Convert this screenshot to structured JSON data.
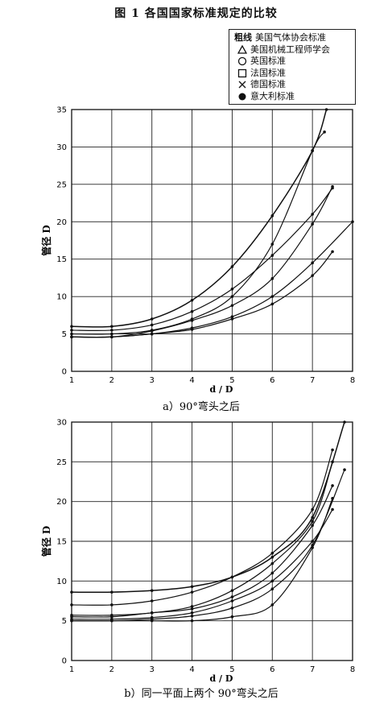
{
  "figure_title": "图 1   各国国家标准规定的比较",
  "legend": {
    "items": [
      {
        "symbol": "粗线",
        "label": "美国气体协会标准",
        "icon": "thick-line-icon"
      },
      {
        "symbol": "triangle",
        "label": "美国机械工程师学会",
        "icon": "triangle-icon"
      },
      {
        "symbol": "circle",
        "label": "英国标准",
        "icon": "circle-icon"
      },
      {
        "symbol": "square",
        "label": "法国标准",
        "icon": "square-icon"
      },
      {
        "symbol": "cross",
        "label": "德国标准",
        "icon": "cross-icon"
      },
      {
        "symbol": "dot",
        "label": "意大利标准",
        "icon": "filled-dot-icon"
      }
    ]
  },
  "chart_data": [
    {
      "type": "line",
      "title": "a）90°弯头之后",
      "xlabel": "d / D",
      "ylabel": "管径 D",
      "xlim": [
        1,
        8
      ],
      "ylim": [
        0,
        35
      ],
      "xticks": [
        1,
        2,
        3,
        4,
        5,
        6,
        7,
        8
      ],
      "yticks": [
        0,
        5,
        10,
        15,
        20,
        25,
        30,
        35
      ],
      "grid": true,
      "series": [
        {
          "x": [
            1,
            2,
            3,
            4,
            5,
            6,
            7,
            7.35
          ],
          "y": [
            6.0,
            6.0,
            7.0,
            9.5,
            14.0,
            20.8,
            29.5,
            35.0
          ]
        },
        {
          "x": [
            1,
            2,
            3,
            4,
            5,
            6,
            7,
            7.5
          ],
          "y": [
            5.5,
            5.5,
            6.2,
            8.0,
            11.0,
            15.5,
            21.0,
            24.5
          ]
        },
        {
          "x": [
            1,
            2,
            3,
            4,
            5,
            6,
            7,
            7.3
          ],
          "y": [
            5.0,
            5.0,
            5.5,
            7.0,
            10.0,
            17.0,
            29.5,
            32.0
          ]
        },
        {
          "x": [
            1,
            2,
            3,
            4,
            5,
            6,
            7,
            7.5
          ],
          "y": [
            4.6,
            4.6,
            5.4,
            6.8,
            8.8,
            12.4,
            19.7,
            24.7
          ]
        },
        {
          "x": [
            1,
            2,
            3,
            4,
            5,
            6,
            7,
            7.5
          ],
          "y": [
            4.6,
            4.6,
            5.0,
            5.6,
            7.0,
            9.0,
            12.8,
            16.0
          ]
        },
        {
          "x": [
            1,
            2,
            3,
            4,
            5,
            6,
            7,
            8
          ],
          "y": [
            4.6,
            4.6,
            5.0,
            5.8,
            7.3,
            10.0,
            14.5,
            20.0
          ]
        }
      ]
    },
    {
      "type": "line",
      "title": "b）同一平面上两个 90°弯头之后",
      "xlabel": "d / D",
      "ylabel": "管径 D",
      "xlim": [
        1,
        8
      ],
      "ylim": [
        0,
        30
      ],
      "xticks": [
        1,
        2,
        3,
        4,
        5,
        6,
        7,
        8
      ],
      "yticks": [
        0,
        5,
        10,
        15,
        20,
        25,
        30
      ],
      "grid": true,
      "series": [
        {
          "x": [
            1,
            2,
            3,
            4,
            5,
            6,
            7,
            7.8
          ],
          "y": [
            8.6,
            8.6,
            8.8,
            9.3,
            10.5,
            13.0,
            18.0,
            30.0
          ]
        },
        {
          "x": [
            1,
            2,
            3,
            4,
            5,
            6,
            7,
            7.5
          ],
          "y": [
            7.0,
            7.0,
            7.5,
            8.6,
            10.5,
            13.5,
            19.0,
            26.5
          ]
        },
        {
          "x": [
            1,
            2,
            3,
            4,
            5,
            6,
            7,
            7.5
          ],
          "y": [
            5.7,
            5.7,
            6.0,
            6.8,
            8.8,
            12.2,
            17.5,
            25.0
          ]
        },
        {
          "x": [
            1,
            2,
            3,
            4,
            5,
            6,
            7,
            7.5
          ],
          "y": [
            5.5,
            5.5,
            6.0,
            6.5,
            8.0,
            11.0,
            17.0,
            22.0
          ]
        },
        {
          "x": [
            1,
            2,
            3,
            4,
            5,
            6,
            7,
            7.5
          ],
          "y": [
            5.2,
            5.2,
            5.4,
            6.0,
            7.5,
            10.0,
            15.0,
            19.0
          ]
        },
        {
          "x": [
            1,
            2,
            3,
            4,
            5,
            6,
            7,
            7.5
          ],
          "y": [
            5.0,
            5.0,
            5.0,
            5.0,
            5.5,
            7.0,
            14.2,
            20.4
          ]
        },
        {
          "x": [
            1,
            2,
            3,
            4,
            5,
            6,
            7,
            7.8
          ],
          "y": [
            5.0,
            5.0,
            5.2,
            5.6,
            6.6,
            9.0,
            14.5,
            24.0
          ]
        }
      ]
    }
  ]
}
